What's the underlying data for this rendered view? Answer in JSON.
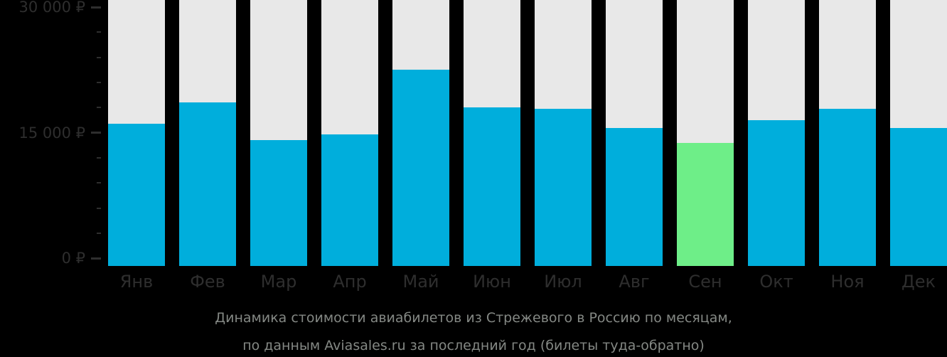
{
  "chart_data": {
    "type": "bar",
    "title": "Динамика стоимости авиабилетов из Стрежевого в Россию по месяцам,",
    "subtitle": "по данным Aviasales.ru за последний год (билеты туда-обратно)",
    "categories": [
      "Янв",
      "Фев",
      "Мар",
      "Апр",
      "Май",
      "Июн",
      "Июл",
      "Авг",
      "Сен",
      "Окт",
      "Ноя",
      "Дек"
    ],
    "values": [
      16100,
      18600,
      14100,
      14800,
      22500,
      18000,
      17900,
      15600,
      13800,
      16500,
      17900,
      15600
    ],
    "highlight_index": 8,
    "highlight_month": "Сен",
    "ylim": [
      0,
      30000
    ],
    "y_major_ticks": [
      {
        "value": 30000,
        "label": "30 000 ₽"
      },
      {
        "value": 15000,
        "label": "15 000 ₽"
      },
      {
        "value": 0,
        "label": "0 ₽"
      }
    ],
    "y_minor_tick_values": [
      27000,
      24000,
      21000,
      18000,
      12000,
      9000,
      6000,
      3000
    ],
    "legend_position": "none",
    "grid": false,
    "colors": {
      "background": "#000000",
      "bar": "#00aedc",
      "bar_highlight": "#6eee88",
      "column_track": "#e8e8e8",
      "axis_text": "#2e2e2e",
      "caption_text": "#848884"
    }
  }
}
